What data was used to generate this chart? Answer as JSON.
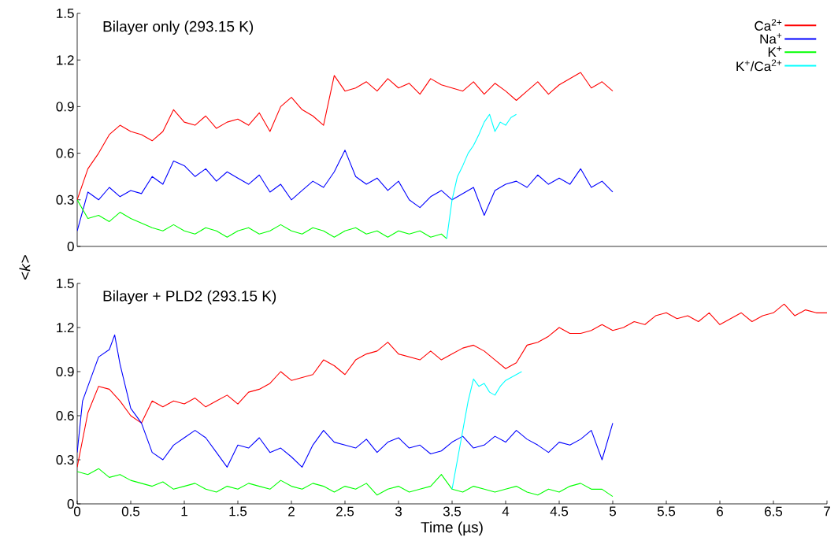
{
  "chart_data": [
    {
      "type": "line",
      "title": "Bilayer only (293.15 K)",
      "ylabel": "<*k*>",
      "xlim": [
        0,
        7
      ],
      "ylim": [
        0,
        1.5
      ],
      "yticks": [
        0,
        0.3,
        0.6,
        0.9,
        1.2,
        1.5
      ],
      "tick_labels": "y",
      "legend": "top right",
      "series": [
        {
          "name": "Ca$^{2+}$",
          "color": "#ff0000",
          "x": [
            0,
            0.1,
            0.2,
            0.3,
            0.4,
            0.5,
            0.6,
            0.7,
            0.8,
            0.9,
            1.0,
            1.1,
            1.2,
            1.3,
            1.4,
            1.5,
            1.6,
            1.7,
            1.8,
            1.9,
            2.0,
            2.1,
            2.2,
            2.3,
            2.4,
            2.5,
            2.6,
            2.7,
            2.8,
            2.9,
            3.0,
            3.1,
            3.2,
            3.3,
            3.4,
            3.5,
            3.6,
            3.7,
            3.8,
            3.9,
            4.0,
            4.1,
            4.2,
            4.3,
            4.4,
            4.5,
            4.6,
            4.7,
            4.8,
            4.9,
            5.0
          ],
          "values": [
            0.3,
            0.5,
            0.6,
            0.72,
            0.78,
            0.74,
            0.72,
            0.68,
            0.74,
            0.88,
            0.8,
            0.78,
            0.84,
            0.76,
            0.8,
            0.82,
            0.78,
            0.86,
            0.74,
            0.9,
            0.96,
            0.88,
            0.84,
            0.78,
            1.1,
            1.0,
            1.02,
            1.06,
            1.0,
            1.08,
            1.02,
            1.05,
            0.98,
            1.08,
            1.04,
            1.02,
            1.0,
            1.06,
            0.98,
            1.05,
            1.0,
            0.94,
            1.0,
            1.06,
            0.98,
            1.04,
            1.08,
            1.12,
            1.02,
            1.06,
            1.0
          ]
        },
        {
          "name": "Na$^{+}$",
          "color": "#0000ff",
          "x": [
            0,
            0.1,
            0.2,
            0.3,
            0.4,
            0.5,
            0.6,
            0.7,
            0.8,
            0.9,
            1.0,
            1.1,
            1.2,
            1.3,
            1.4,
            1.5,
            1.6,
            1.7,
            1.8,
            1.9,
            2.0,
            2.1,
            2.2,
            2.3,
            2.4,
            2.5,
            2.6,
            2.7,
            2.8,
            2.9,
            3.0,
            3.1,
            3.2,
            3.3,
            3.4,
            3.5,
            3.6,
            3.7,
            3.8,
            3.9,
            4.0,
            4.1,
            4.2,
            4.3,
            4.4,
            4.5,
            4.6,
            4.7,
            4.8,
            4.9,
            5.0
          ],
          "values": [
            0.1,
            0.35,
            0.3,
            0.38,
            0.32,
            0.36,
            0.34,
            0.45,
            0.4,
            0.55,
            0.52,
            0.45,
            0.5,
            0.42,
            0.48,
            0.44,
            0.4,
            0.46,
            0.35,
            0.4,
            0.3,
            0.36,
            0.42,
            0.38,
            0.48,
            0.62,
            0.45,
            0.4,
            0.44,
            0.36,
            0.42,
            0.3,
            0.25,
            0.32,
            0.36,
            0.3,
            0.34,
            0.38,
            0.2,
            0.36,
            0.4,
            0.42,
            0.38,
            0.46,
            0.4,
            0.44,
            0.4,
            0.5,
            0.38,
            0.42,
            0.35
          ]
        },
        {
          "name": "K$^{+}$",
          "color": "#00ff00",
          "x": [
            0,
            0.1,
            0.2,
            0.3,
            0.4,
            0.5,
            0.6,
            0.7,
            0.8,
            0.9,
            1.0,
            1.1,
            1.2,
            1.3,
            1.4,
            1.5,
            1.6,
            1.7,
            1.8,
            1.9,
            2.0,
            2.1,
            2.2,
            2.3,
            2.4,
            2.5,
            2.6,
            2.7,
            2.8,
            2.9,
            3.0,
            3.1,
            3.2,
            3.3,
            3.4,
            3.45
          ],
          "values": [
            0.3,
            0.18,
            0.2,
            0.16,
            0.22,
            0.18,
            0.15,
            0.12,
            0.1,
            0.14,
            0.1,
            0.08,
            0.12,
            0.1,
            0.06,
            0.1,
            0.12,
            0.08,
            0.1,
            0.14,
            0.1,
            0.08,
            0.12,
            0.1,
            0.06,
            0.1,
            0.12,
            0.08,
            0.1,
            0.06,
            0.1,
            0.08,
            0.1,
            0.06,
            0.08,
            0.05
          ]
        },
        {
          "name": "K$^{+}$/Ca$^{2+}$",
          "color": "#00ffff",
          "x": [
            3.45,
            3.5,
            3.55,
            3.6,
            3.65,
            3.7,
            3.75,
            3.8,
            3.85,
            3.9,
            3.95,
            4.0,
            4.05,
            4.1
          ],
          "values": [
            0.05,
            0.3,
            0.45,
            0.52,
            0.6,
            0.65,
            0.72,
            0.8,
            0.85,
            0.74,
            0.8,
            0.78,
            0.83,
            0.85
          ]
        }
      ]
    },
    {
      "type": "line",
      "title": "Bilayer + PLD2 (293.15 K)",
      "xlabel": "Time (µs)",
      "xlim": [
        0,
        7
      ],
      "xticks": [
        0,
        0.5,
        1,
        1.5,
        2,
        2.5,
        3,
        3.5,
        4,
        4.5,
        5,
        5.5,
        6,
        6.5,
        7
      ],
      "ylim": [
        0,
        1.5
      ],
      "yticks": [
        0,
        0.3,
        0.6,
        0.9,
        1.2,
        1.5
      ],
      "series": [
        {
          "color": "#ff0000",
          "x": [
            0,
            0.1,
            0.2,
            0.3,
            0.4,
            0.5,
            0.6,
            0.7,
            0.8,
            0.9,
            1.0,
            1.1,
            1.2,
            1.3,
            1.4,
            1.5,
            1.6,
            1.7,
            1.8,
            1.9,
            2.0,
            2.1,
            2.2,
            2.3,
            2.4,
            2.5,
            2.6,
            2.7,
            2.8,
            2.9,
            3.0,
            3.1,
            3.2,
            3.3,
            3.4,
            3.5,
            3.6,
            3.7,
            3.8,
            3.9,
            4.0,
            4.1,
            4.2,
            4.3,
            4.4,
            4.5,
            4.6,
            4.7,
            4.8,
            4.9,
            5.0,
            5.1,
            5.2,
            5.3,
            5.4,
            5.5,
            5.6,
            5.7,
            5.8,
            5.9,
            6.0,
            6.1,
            6.2,
            6.3,
            6.4,
            6.5,
            6.6,
            6.7,
            6.8,
            6.9,
            7.0
          ],
          "values": [
            0.25,
            0.62,
            0.8,
            0.78,
            0.7,
            0.6,
            0.55,
            0.7,
            0.66,
            0.7,
            0.68,
            0.72,
            0.66,
            0.7,
            0.74,
            0.68,
            0.76,
            0.78,
            0.82,
            0.9,
            0.84,
            0.86,
            0.88,
            0.98,
            0.94,
            0.88,
            0.98,
            1.02,
            1.04,
            1.1,
            1.02,
            1.0,
            0.98,
            1.04,
            0.98,
            1.02,
            1.06,
            1.08,
            1.04,
            0.98,
            0.92,
            0.96,
            1.08,
            1.1,
            1.14,
            1.2,
            1.16,
            1.16,
            1.18,
            1.22,
            1.18,
            1.2,
            1.24,
            1.22,
            1.28,
            1.3,
            1.26,
            1.28,
            1.24,
            1.3,
            1.22,
            1.26,
            1.3,
            1.24,
            1.28,
            1.3,
            1.36,
            1.28,
            1.32,
            1.3,
            1.3
          ]
        },
        {
          "color": "#0000ff",
          "x": [
            0,
            0.05,
            0.1,
            0.2,
            0.3,
            0.35,
            0.4,
            0.5,
            0.6,
            0.7,
            0.8,
            0.9,
            1.0,
            1.1,
            1.2,
            1.3,
            1.4,
            1.5,
            1.6,
            1.7,
            1.8,
            1.9,
            2.0,
            2.1,
            2.2,
            2.3,
            2.4,
            2.5,
            2.6,
            2.7,
            2.8,
            2.9,
            3.0,
            3.1,
            3.2,
            3.3,
            3.4,
            3.5,
            3.6,
            3.7,
            3.8,
            3.9,
            4.0,
            4.1,
            4.2,
            4.3,
            4.4,
            4.5,
            4.6,
            4.7,
            4.8,
            4.9,
            5.0
          ],
          "values": [
            0.35,
            0.7,
            0.8,
            1.0,
            1.05,
            1.15,
            0.95,
            0.65,
            0.55,
            0.35,
            0.3,
            0.4,
            0.45,
            0.5,
            0.45,
            0.35,
            0.25,
            0.4,
            0.38,
            0.45,
            0.35,
            0.38,
            0.32,
            0.25,
            0.4,
            0.5,
            0.42,
            0.4,
            0.38,
            0.44,
            0.35,
            0.42,
            0.45,
            0.38,
            0.4,
            0.34,
            0.36,
            0.42,
            0.46,
            0.38,
            0.4,
            0.46,
            0.42,
            0.5,
            0.44,
            0.4,
            0.35,
            0.42,
            0.4,
            0.44,
            0.5,
            0.3,
            0.55
          ]
        },
        {
          "color": "#00ff00",
          "x": [
            0,
            0.1,
            0.2,
            0.3,
            0.4,
            0.5,
            0.6,
            0.7,
            0.8,
            0.9,
            1.0,
            1.1,
            1.2,
            1.3,
            1.4,
            1.5,
            1.6,
            1.7,
            1.8,
            1.9,
            2.0,
            2.1,
            2.2,
            2.3,
            2.4,
            2.5,
            2.6,
            2.7,
            2.8,
            2.9,
            3.0,
            3.1,
            3.2,
            3.3,
            3.4,
            3.5,
            3.6,
            3.7,
            3.8,
            3.9,
            4.0,
            4.1,
            4.2,
            4.3,
            4.4,
            4.5,
            4.6,
            4.7,
            4.8,
            4.9,
            5.0
          ],
          "values": [
            0.22,
            0.2,
            0.24,
            0.18,
            0.2,
            0.16,
            0.14,
            0.12,
            0.15,
            0.1,
            0.12,
            0.14,
            0.1,
            0.08,
            0.12,
            0.1,
            0.14,
            0.12,
            0.1,
            0.16,
            0.12,
            0.1,
            0.14,
            0.12,
            0.08,
            0.12,
            0.1,
            0.14,
            0.06,
            0.1,
            0.12,
            0.08,
            0.1,
            0.12,
            0.2,
            0.1,
            0.08,
            0.12,
            0.1,
            0.08,
            0.1,
            0.12,
            0.08,
            0.06,
            0.1,
            0.08,
            0.12,
            0.14,
            0.1,
            0.1,
            0.05
          ]
        },
        {
          "color": "#00ffff",
          "x": [
            3.5,
            3.55,
            3.6,
            3.65,
            3.7,
            3.75,
            3.8,
            3.85,
            3.9,
            3.95,
            4.0,
            4.05,
            4.1,
            4.15
          ],
          "values": [
            0.1,
            0.3,
            0.5,
            0.7,
            0.85,
            0.8,
            0.82,
            0.76,
            0.74,
            0.8,
            0.84,
            0.86,
            0.88,
            0.9
          ]
        }
      ]
    }
  ]
}
